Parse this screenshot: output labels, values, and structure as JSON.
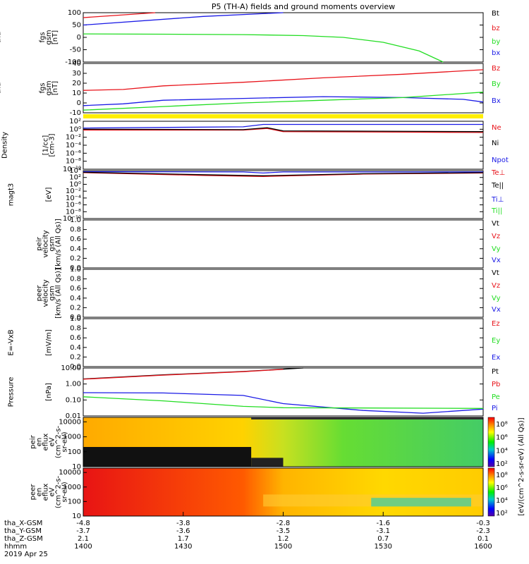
{
  "title": "P5 (TH-A) fields and ground moments overview",
  "colors": {
    "black": "#000000",
    "red": "#e8131a",
    "green": "#22dd22",
    "blue": "#1a1ae6",
    "yellow": "#ffee00"
  },
  "time_axis": {
    "ticks": [
      "1400",
      "1430",
      "1500",
      "1530",
      "1600"
    ],
    "date": "2019 Apr 25"
  },
  "ephemeris": {
    "labels": [
      "tha_X-GSM",
      "tha_Y-GSM",
      "tha_Z-GSM",
      "hhmm"
    ],
    "rows": [
      [
        "-4.8",
        "-3.8",
        "-2.8",
        "-1.6",
        "-0.3"
      ],
      [
        "-3.7",
        "-3.6",
        "-3.5",
        "-3.1",
        "-2.3"
      ],
      [
        "2.1",
        "1.7",
        "1.2",
        "0.7",
        "0.1"
      ]
    ]
  },
  "chart_data": [
    {
      "type": "line",
      "ylabel": [
        "tha",
        "fgs",
        "gsm",
        "[nT]"
      ],
      "ylim": [
        -100,
        100
      ],
      "yticks": [
        "100",
        "50",
        "0",
        "-50",
        "-100"
      ],
      "legend": [
        {
          "name": "Bt",
          "color": "black"
        },
        {
          "name": "bz",
          "color": "red"
        },
        {
          "name": "by",
          "color": "green"
        },
        {
          "name": "bx",
          "color": "blue"
        }
      ],
      "series": [
        {
          "name": "bz",
          "color": "red",
          "points": [
            [
              0,
              80
            ],
            [
              0.18,
              100
            ]
          ]
        },
        {
          "name": "bx",
          "color": "blue",
          "points": [
            [
              0,
              50
            ],
            [
              0.3,
              85
            ],
            [
              0.5,
              100
            ]
          ]
        },
        {
          "name": "by",
          "color": "green",
          "points": [
            [
              0,
              14
            ],
            [
              0.2,
              13
            ],
            [
              0.4,
              11
            ],
            [
              0.55,
              7
            ],
            [
              0.65,
              0
            ],
            [
              0.75,
              -20
            ],
            [
              0.84,
              -55
            ],
            [
              0.9,
              -100
            ]
          ]
        }
      ]
    },
    {
      "type": "line",
      "ylabel": [
        "tha",
        "fgs",
        "gsm",
        "[nT]"
      ],
      "ylim": [
        -15,
        40
      ],
      "yticks": [
        "40",
        "30",
        "20",
        "10",
        "0",
        "-10"
      ],
      "legend": [
        {
          "name": "Bz",
          "color": "red"
        },
        {
          "name": "By",
          "color": "green"
        },
        {
          "name": "Bx",
          "color": "blue"
        }
      ],
      "series": [
        {
          "name": "Bz",
          "color": "red",
          "points": [
            [
              0,
              10
            ],
            [
              0.1,
              11
            ],
            [
              0.2,
              15
            ],
            [
              0.4,
              19
            ],
            [
              0.6,
              24
            ],
            [
              0.8,
              28
            ],
            [
              1,
              33
            ]
          ]
        },
        {
          "name": "Bx",
          "color": "blue",
          "points": [
            [
              0,
              -7
            ],
            [
              0.1,
              -5
            ],
            [
              0.2,
              -1
            ],
            [
              0.4,
              1
            ],
            [
              0.6,
              3
            ],
            [
              0.8,
              2
            ],
            [
              0.95,
              0
            ],
            [
              1,
              -3
            ]
          ]
        },
        {
          "name": "By",
          "color": "green",
          "points": [
            [
              0,
              -12
            ],
            [
              0.2,
              -8
            ],
            [
              0.4,
              -4
            ],
            [
              0.6,
              -1
            ],
            [
              0.8,
              2
            ],
            [
              1,
              8
            ]
          ]
        }
      ]
    },
    {
      "type": "line",
      "ylabel": [
        "Density",
        "[1/cc]",
        "[cm-3]"
      ],
      "log": true,
      "ylim": [
        -10,
        2
      ],
      "yticks": [
        "10²",
        "10⁰",
        "10⁻²",
        "10⁻⁴",
        "10⁻⁶",
        "10⁻⁸",
        "10⁻¹⁰"
      ],
      "legend": [
        {
          "name": "Ne",
          "color": "red"
        },
        {
          "name": "Ni",
          "color": "black"
        },
        {
          "name": "Npot",
          "color": "blue"
        }
      ],
      "series": [
        {
          "name": "Npot",
          "color": "blue",
          "points": [
            [
              0,
              0.3
            ],
            [
              0.4,
              0.6
            ],
            [
              0.45,
              1.2
            ],
            [
              1,
              1.2
            ]
          ]
        },
        {
          "name": "Ne",
          "color": "red",
          "points": [
            [
              0,
              -0.2
            ],
            [
              0.4,
              -0.2
            ],
            [
              0.46,
              0.2
            ],
            [
              0.5,
              -0.6
            ],
            [
              1,
              -0.8
            ]
          ]
        },
        {
          "name": "Ni",
          "color": "black",
          "points": [
            [
              0,
              0
            ],
            [
              0.4,
              -0.1
            ],
            [
              0.46,
              0.4
            ],
            [
              0.5,
              -0.4
            ],
            [
              1,
              -0.6
            ]
          ]
        }
      ]
    },
    {
      "type": "line",
      "ylabel": [
        "magt3",
        "[eV]"
      ],
      "log": true,
      "ylim": [
        -10,
        4
      ],
      "yticks": [
        "10⁴",
        "10²",
        "10⁰",
        "10⁻²",
        "10⁻⁴",
        "10⁻⁶",
        "10⁻⁸",
        "10⁻¹⁰"
      ],
      "legend": [
        {
          "name": "Te⊥",
          "color": "red"
        },
        {
          "name": "Te||",
          "color": "black"
        },
        {
          "name": "Ti⊥",
          "color": "blue"
        },
        {
          "name": "Ti||",
          "color": "green"
        }
      ],
      "series": [
        {
          "name": "Ti",
          "color": "blue",
          "points": [
            [
              0,
              3.7
            ],
            [
              0.4,
              3.6
            ],
            [
              0.45,
              3.3
            ],
            [
              0.5,
              3.6
            ],
            [
              1,
              3.6
            ]
          ]
        },
        {
          "name": "Te",
          "color": "red",
          "points": [
            [
              0,
              3.4
            ],
            [
              0.3,
              2.6
            ],
            [
              0.45,
              2.3
            ],
            [
              0.7,
              3
            ],
            [
              1,
              3.3
            ]
          ]
        },
        {
          "name": "Te||",
          "color": "black",
          "points": [
            [
              0,
              3.5
            ],
            [
              0.3,
              2.8
            ],
            [
              0.45,
              2.5
            ],
            [
              0.7,
              3.1
            ],
            [
              1,
              3.4
            ]
          ]
        }
      ]
    },
    {
      "type": "line",
      "ylabel": [
        "tha",
        "peir",
        "velocity",
        "gsm",
        "[km/s (All Qs)]"
      ],
      "ylim": [
        0,
        1
      ],
      "yticks": [
        "1.0",
        "0.8",
        "0.6",
        "0.4",
        "0.2",
        "0.0"
      ],
      "legend": [
        {
          "name": "Vt",
          "color": "black"
        },
        {
          "name": "Vz",
          "color": "red"
        },
        {
          "name": "Vy",
          "color": "green"
        },
        {
          "name": "Vx",
          "color": "blue"
        }
      ],
      "series": []
    },
    {
      "type": "line",
      "ylabel": [
        "tha",
        "peer",
        "velocity",
        "gsm",
        "[km/s (All Qs)]"
      ],
      "ylim": [
        0,
        1
      ],
      "yticks": [
        "1.0",
        "0.8",
        "0.6",
        "0.4",
        "0.2",
        "0.0"
      ],
      "legend": [
        {
          "name": "Vt",
          "color": "black"
        },
        {
          "name": "Vz",
          "color": "red"
        },
        {
          "name": "Vy",
          "color": "green"
        },
        {
          "name": "Vx",
          "color": "blue"
        }
      ],
      "series": []
    },
    {
      "type": "line",
      "ylabel": [
        "E=-VxB",
        "[mV/m]"
      ],
      "ylim": [
        0,
        1
      ],
      "yticks": [
        "1.0",
        "0.8",
        "0.6",
        "0.4",
        "0.2",
        "0.0"
      ],
      "legend": [
        {
          "name": "Ez",
          "color": "red"
        },
        {
          "name": "Ey",
          "color": "green"
        },
        {
          "name": "Ex",
          "color": "blue"
        }
      ],
      "series": []
    },
    {
      "type": "line",
      "ylabel": [
        "Pressure",
        "[nPa]"
      ],
      "log": true,
      "ylim": [
        -2.3,
        1.2
      ],
      "yticks": [
        "10.00",
        "1.00",
        "0.10",
        "0.01"
      ],
      "legend": [
        {
          "name": "Pt",
          "color": "black"
        },
        {
          "name": "Pb",
          "color": "red"
        },
        {
          "name": "Pe",
          "color": "green"
        },
        {
          "name": "Pi",
          "color": "blue"
        }
      ],
      "series": [
        {
          "name": "Pt",
          "color": "black",
          "points": [
            [
              0,
              0.4
            ],
            [
              0.2,
              0.7
            ],
            [
              0.4,
              0.95
            ],
            [
              0.55,
              1.2
            ]
          ]
        },
        {
          "name": "Pb",
          "color": "red",
          "points": [
            [
              0,
              0.38
            ],
            [
              0.2,
              0.68
            ],
            [
              0.4,
              0.93
            ],
            [
              0.5,
              1.1
            ]
          ]
        },
        {
          "name": "Pi",
          "color": "blue",
          "points": [
            [
              0,
              -0.6
            ],
            [
              0.2,
              -0.62
            ],
            [
              0.4,
              -0.8
            ],
            [
              0.5,
              -1.4
            ],
            [
              0.7,
              -1.9
            ],
            [
              0.85,
              -2.1
            ],
            [
              1,
              -1.8
            ]
          ]
        },
        {
          "name": "Pe",
          "color": "green",
          "points": [
            [
              0,
              -0.9
            ],
            [
              0.2,
              -1.2
            ],
            [
              0.4,
              -1.6
            ],
            [
              0.5,
              -1.7
            ],
            [
              1,
              -1.75
            ]
          ]
        }
      ]
    },
    {
      "type": "heatmap",
      "ylabel": [
        "tha",
        "peir",
        "en",
        "eflux",
        "eV",
        "(cm^2-s-",
        "sr-eV)"
      ],
      "ylim": [
        1,
        4.3
      ],
      "yticks": [
        "10000",
        "1000",
        "100",
        "10"
      ],
      "cbar_ticks": [
        "10⁸",
        "10⁶",
        "10⁴",
        "10²"
      ]
    },
    {
      "type": "heatmap",
      "ylabel": [
        "tha",
        "peer",
        "en",
        "eflux",
        "eV",
        "(cm^2-s-",
        "sr-eV)"
      ],
      "ylim": [
        1,
        4.3
      ],
      "yticks": [
        "10000",
        "1000",
        "100",
        "10"
      ],
      "cbar_ticks": [
        "10⁸",
        "10⁶",
        "10⁴",
        "10²"
      ]
    }
  ],
  "cbar_label": "[eV/(cm^2-s-sr-eV) (All Qs)]"
}
